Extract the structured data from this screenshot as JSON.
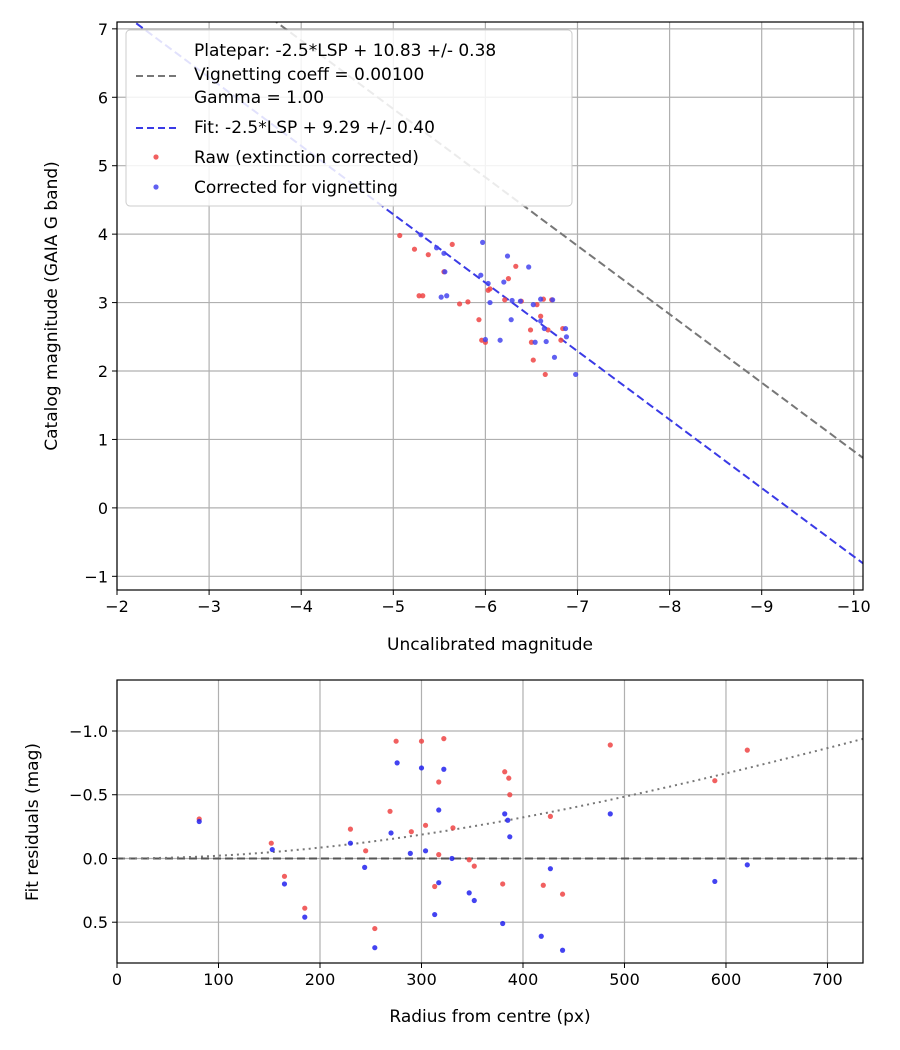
{
  "chart_data": [
    {
      "type": "scatter",
      "title": "",
      "xlabel": "Uncalibrated magnitude",
      "ylabel": "Catalog magnitude (GAIA G band)",
      "xlim": [
        -2,
        -10.1
      ],
      "ylim": [
        7.1,
        -1.2
      ],
      "xticks": [
        -2,
        -3,
        -4,
        -5,
        -6,
        -7,
        -8,
        -9,
        -10
      ],
      "xtick_labels": [
        "−2",
        "−3",
        "−4",
        "−5",
        "−6",
        "−7",
        "−8",
        "−9",
        "−10"
      ],
      "yticks": [
        -1,
        0,
        1,
        2,
        3,
        4,
        5,
        6,
        7
      ],
      "ytick_labels": [
        "−1",
        "0",
        "1",
        "2",
        "3",
        "4",
        "5",
        "6",
        "7"
      ],
      "grid": true,
      "legend_position": "top-left",
      "legend": {
        "platepar": "Platepar: -2.5*LSP + 10.83 +/- 0.38",
        "vignetting": "Vignetting coeff = 0.00100",
        "gamma": "Gamma = 1.00",
        "fit": "Fit: -2.5*LSP + 9.29 +/- 0.40",
        "raw": "Raw (extinction corrected)",
        "corrected": "Corrected for vignetting"
      },
      "lines": [
        {
          "name": "Platepar",
          "slope": 1,
          "intercept": 10.83,
          "color": "#777777",
          "style": "dashed"
        },
        {
          "name": "Fit",
          "slope": 1,
          "intercept": 9.29,
          "color": "#3a3ae6",
          "style": "dashed"
        }
      ],
      "series": [
        {
          "name": "Raw (extinction corrected)",
          "color": "#ee4444",
          "points": [
            [
              -5.07,
              3.98
            ],
            [
              -5.23,
              3.78
            ],
            [
              -5.28,
              3.1
            ],
            [
              -5.32,
              3.1
            ],
            [
              -5.38,
              3.7
            ],
            [
              -5.55,
              3.45
            ],
            [
              -5.64,
              3.85
            ],
            [
              -5.72,
              2.98
            ],
            [
              -5.81,
              3.01
            ],
            [
              -5.93,
              2.75
            ],
            [
              -5.96,
              2.45
            ],
            [
              -6.0,
              2.42
            ],
            [
              -6.03,
              3.18
            ],
            [
              -6.05,
              3.2
            ],
            [
              -6.21,
              3.04
            ],
            [
              -6.25,
              3.35
            ],
            [
              -6.33,
              3.53
            ],
            [
              -6.39,
              3.02
            ],
            [
              -6.49,
              2.6
            ],
            [
              -6.5,
              2.42
            ],
            [
              -6.52,
              2.16
            ],
            [
              -6.56,
              2.97
            ],
            [
              -6.6,
              2.8
            ],
            [
              -6.65,
              1.95
            ],
            [
              -6.68,
              2.6
            ],
            [
              -6.72,
              3.04
            ],
            [
              -6.82,
              2.45
            ],
            [
              -6.84,
              2.62
            ],
            [
              -6.63,
              3.05
            ]
          ]
        },
        {
          "name": "Corrected for vignetting",
          "color": "#4444ee",
          "points": [
            [
              -5.3,
              3.99
            ],
            [
              -5.47,
              3.8
            ],
            [
              -5.52,
              3.08
            ],
            [
              -5.55,
              3.72
            ],
            [
              -5.58,
              3.1
            ],
            [
              -5.56,
              3.45
            ],
            [
              -5.95,
              3.4
            ],
            [
              -5.97,
              3.88
            ],
            [
              -6.0,
              2.46
            ],
            [
              -6.03,
              3.28
            ],
            [
              -6.05,
              3.0
            ],
            [
              -6.16,
              2.45
            ],
            [
              -6.2,
              3.3
            ],
            [
              -6.24,
              3.68
            ],
            [
              -6.28,
              2.75
            ],
            [
              -6.29,
              3.03
            ],
            [
              -6.38,
              3.02
            ],
            [
              -6.47,
              3.52
            ],
            [
              -6.52,
              2.97
            ],
            [
              -6.54,
              2.42
            ],
            [
              -6.6,
              3.05
            ],
            [
              -6.64,
              2.62
            ],
            [
              -6.66,
              2.43
            ],
            [
              -6.73,
              3.04
            ],
            [
              -6.75,
              2.2
            ],
            [
              -6.87,
              2.62
            ],
            [
              -6.88,
              2.5
            ],
            [
              -6.98,
              1.95
            ],
            [
              -6.6,
              2.73
            ]
          ]
        }
      ]
    },
    {
      "type": "scatter",
      "title": "",
      "xlabel": "Radius from centre (px)",
      "ylabel": "Fit residuals (mag)",
      "xlim": [
        0,
        735
      ],
      "ylim": [
        -1.4,
        0.82
      ],
      "xticks": [
        0,
        100,
        200,
        300,
        400,
        500,
        600,
        700
      ],
      "xtick_labels": [
        "0",
        "100",
        "200",
        "300",
        "400",
        "500",
        "600",
        "700"
      ],
      "yticks": [
        0.5,
        0.0,
        -0.5,
        -1.0
      ],
      "ytick_labels": [
        "0.5",
        "0.0",
        "−0.5",
        "−1.0"
      ],
      "grid": true,
      "reference_lines": [
        {
          "name": "zero",
          "y": 0.0,
          "color": "#555555",
          "style": "dashed"
        },
        {
          "name": "vignetting model",
          "curve": "-2.5*log10(cos^4(atan(0.001*r)))",
          "color": "#777777",
          "style": "dotted"
        }
      ],
      "series": [
        {
          "name": "Raw (extinction corrected)",
          "color": "#ee4444",
          "points": [
            [
              81,
              -0.31
            ],
            [
              152,
              -0.12
            ],
            [
              165,
              0.14
            ],
            [
              185,
              0.39
            ],
            [
              230,
              -0.23
            ],
            [
              245,
              -0.06
            ],
            [
              254,
              0.55
            ],
            [
              269,
              -0.37
            ],
            [
              275,
              -0.92
            ],
            [
              290,
              -0.21
            ],
            [
              300,
              -0.92
            ],
            [
              304,
              -0.26
            ],
            [
              313,
              0.22
            ],
            [
              317,
              -0.6
            ],
            [
              317,
              -0.03
            ],
            [
              322,
              -0.94
            ],
            [
              331,
              -0.24
            ],
            [
              347,
              0.01
            ],
            [
              352,
              0.06
            ],
            [
              380,
              0.2
            ],
            [
              382,
              -0.68
            ],
            [
              386,
              -0.63
            ],
            [
              387,
              -0.5
            ],
            [
              420,
              0.21
            ],
            [
              427,
              -0.33
            ],
            [
              439,
              0.28
            ],
            [
              486,
              -0.89
            ],
            [
              589,
              -0.61
            ],
            [
              621,
              -0.85
            ]
          ]
        },
        {
          "name": "Corrected for vignetting",
          "color": "#2222ee",
          "points": [
            [
              81,
              -0.29
            ],
            [
              153,
              -0.07
            ],
            [
              165,
              0.2
            ],
            [
              185,
              0.46
            ],
            [
              230,
              -0.12
            ],
            [
              244,
              0.07
            ],
            [
              254,
              0.7
            ],
            [
              270,
              -0.2
            ],
            [
              276,
              -0.75
            ],
            [
              289,
              -0.04
            ],
            [
              300,
              -0.71
            ],
            [
              304,
              -0.06
            ],
            [
              313,
              0.44
            ],
            [
              317,
              0.19
            ],
            [
              317,
              -0.38
            ],
            [
              322,
              -0.7
            ],
            [
              330,
              0.0
            ],
            [
              347,
              0.27
            ],
            [
              352,
              0.33
            ],
            [
              380,
              0.51
            ],
            [
              382,
              -0.35
            ],
            [
              385,
              -0.3
            ],
            [
              387,
              -0.17
            ],
            [
              418,
              0.61
            ],
            [
              427,
              0.08
            ],
            [
              439,
              0.72
            ],
            [
              486,
              -0.35
            ],
            [
              589,
              0.18
            ],
            [
              621,
              0.05
            ]
          ]
        }
      ]
    }
  ]
}
